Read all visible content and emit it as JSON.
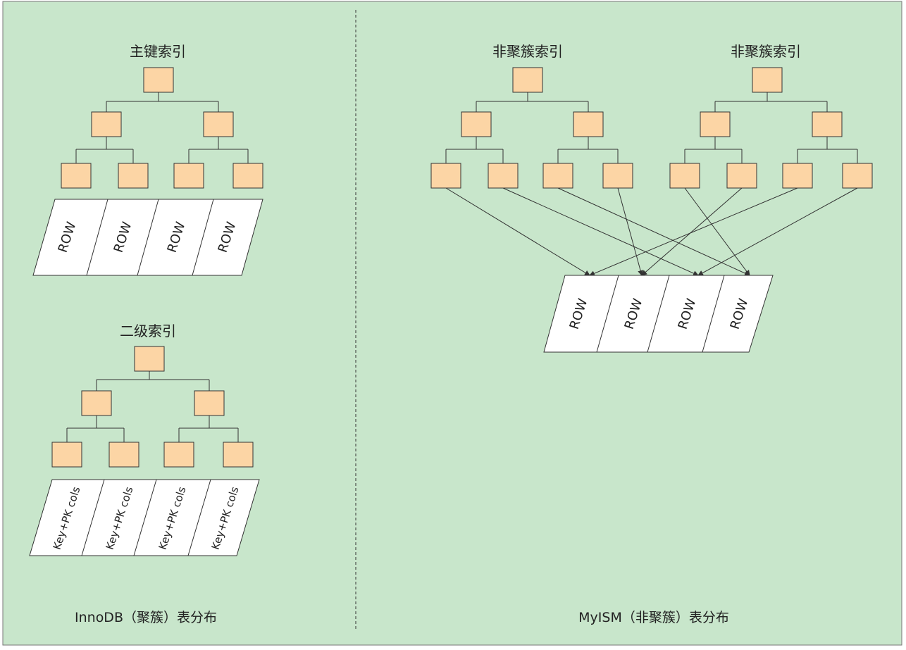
{
  "colors": {
    "background": "#c8e6cb",
    "node_fill": "#fcd5a5",
    "line": "#333333",
    "panel": "#ffffff"
  },
  "innodb": {
    "primary_title": "主键索引",
    "primary_cells": [
      "ROW",
      "ROW",
      "ROW",
      "ROW"
    ],
    "secondary_title": "二级索引",
    "secondary_cells": [
      "Key+PK cols",
      "Key+PK cols",
      "Key+PK cols",
      "Key+PK cols"
    ],
    "caption": "InnoDB（聚簇）表分布"
  },
  "myism": {
    "index_titles": [
      "非聚簇索引",
      "非聚簇索引"
    ],
    "row_cells": [
      "ROW",
      "ROW",
      "ROW",
      "ROW"
    ],
    "caption": "MyISM（非聚簇）表分布"
  }
}
